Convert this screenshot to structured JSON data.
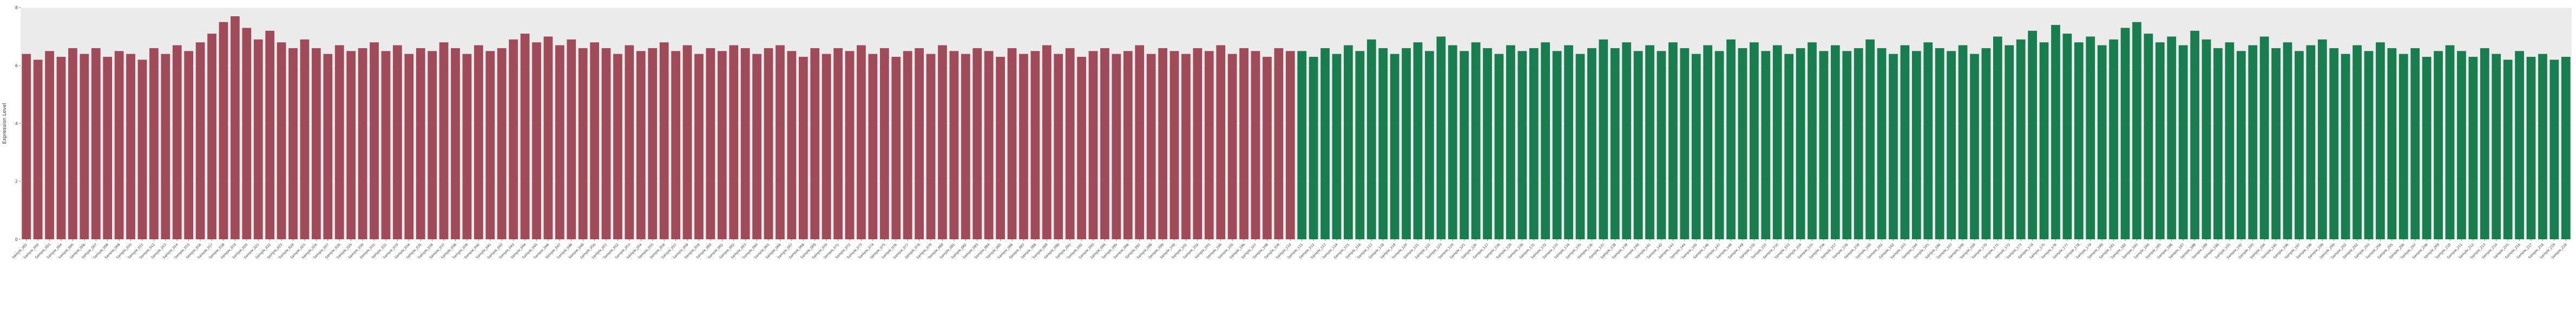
{
  "chart_data": {
    "type": "bar",
    "title": "",
    "xlabel": "",
    "ylabel": "Expression Level",
    "ylim": [
      0,
      8
    ],
    "yticks": [
      0,
      2,
      4,
      6,
      8
    ],
    "grid": true,
    "legend": "none",
    "plot_background": "#ebebeb",
    "grid_color": "#ffffff",
    "tick_color": "#555555",
    "group_split_index": 110,
    "group_colors": [
      "#a04a5a",
      "#1a7d4f"
    ],
    "categories": [
      "Sample_001",
      "Sample_002",
      "Sample_003",
      "Sample_004",
      "Sample_005",
      "Sample_006",
      "Sample_007",
      "Sample_008",
      "Sample_009",
      "Sample_010",
      "Sample_011",
      "Sample_012",
      "Sample_013",
      "Sample_014",
      "Sample_015",
      "Sample_016",
      "Sample_017",
      "Sample_018",
      "Sample_019",
      "Sample_020",
      "Sample_021",
      "Sample_022",
      "Sample_023",
      "Sample_024",
      "Sample_025",
      "Sample_026",
      "Sample_027",
      "Sample_028",
      "Sample_029",
      "Sample_030",
      "Sample_031",
      "Sample_032",
      "Sample_033",
      "Sample_034",
      "Sample_035",
      "Sample_036",
      "Sample_037",
      "Sample_038",
      "Sample_039",
      "Sample_040",
      "Sample_041",
      "Sample_042",
      "Sample_043",
      "Sample_044",
      "Sample_045",
      "Sample_046",
      "Sample_047",
      "Sample_048",
      "Sample_049",
      "Sample_050",
      "Sample_051",
      "Sample_052",
      "Sample_053",
      "Sample_054",
      "Sample_055",
      "Sample_056",
      "Sample_057",
      "Sample_058",
      "Sample_059",
      "Sample_060",
      "Sample_061",
      "Sample_062",
      "Sample_063",
      "Sample_064",
      "Sample_065",
      "Sample_066",
      "Sample_067",
      "Sample_068",
      "Sample_069",
      "Sample_070",
      "Sample_071",
      "Sample_072",
      "Sample_073",
      "Sample_074",
      "Sample_075",
      "Sample_076",
      "Sample_077",
      "Sample_078",
      "Sample_079",
      "Sample_080",
      "Sample_081",
      "Sample_082",
      "Sample_083",
      "Sample_084",
      "Sample_085",
      "Sample_086",
      "Sample_087",
      "Sample_088",
      "Sample_089",
      "Sample_090",
      "Sample_091",
      "Sample_092",
      "Sample_093",
      "Sample_094",
      "Sample_095",
      "Sample_096",
      "Sample_097",
      "Sample_098",
      "Sample_099",
      "Sample_100",
      "Sample_101",
      "Sample_102",
      "Sample_103",
      "Sample_104",
      "Sample_105",
      "Sample_106",
      "Sample_107",
      "Sample_108",
      "Sample_109",
      "Sample_110",
      "Sample_111",
      "Sample_112",
      "Sample_113",
      "Sample_114",
      "Sample_115",
      "Sample_116",
      "Sample_117",
      "Sample_118",
      "Sample_119",
      "Sample_120",
      "Sample_121",
      "Sample_122",
      "Sample_123",
      "Sample_124",
      "Sample_125",
      "Sample_126",
      "Sample_127",
      "Sample_128",
      "Sample_129",
      "Sample_130",
      "Sample_131",
      "Sample_132",
      "Sample_133",
      "Sample_134",
      "Sample_135",
      "Sample_136",
      "Sample_137",
      "Sample_138",
      "Sample_139",
      "Sample_140",
      "Sample_141",
      "Sample_142",
      "Sample_143",
      "Sample_144",
      "Sample_145",
      "Sample_146",
      "Sample_147",
      "Sample_148",
      "Sample_149",
      "Sample_150",
      "Sample_151",
      "Sample_152",
      "Sample_153",
      "Sample_154",
      "Sample_155",
      "Sample_156",
      "Sample_157",
      "Sample_158",
      "Sample_159",
      "Sample_160",
      "Sample_161",
      "Sample_162",
      "Sample_163",
      "Sample_164",
      "Sample_165",
      "Sample_166",
      "Sample_167",
      "Sample_168",
      "Sample_169",
      "Sample_170",
      "Sample_171",
      "Sample_172",
      "Sample_173",
      "Sample_174",
      "Sample_175",
      "Sample_176",
      "Sample_177",
      "Sample_178",
      "Sample_179",
      "Sample_180",
      "Sample_181",
      "Sample_182",
      "Sample_183",
      "Sample_184",
      "Sample_185",
      "Sample_186",
      "Sample_187",
      "Sample_188",
      "Sample_189",
      "Sample_190",
      "Sample_191",
      "Sample_192",
      "Sample_193",
      "Sample_194",
      "Sample_195",
      "Sample_196",
      "Sample_197",
      "Sample_198",
      "Sample_199",
      "Sample_200",
      "Sample_201",
      "Sample_202",
      "Sample_203",
      "Sample_204",
      "Sample_205",
      "Sample_206",
      "Sample_207",
      "Sample_208",
      "Sample_209",
      "Sample_210",
      "Sample_211",
      "Sample_212",
      "Sample_213",
      "Sample_214",
      "Sample_215",
      "Sample_216",
      "Sample_217",
      "Sample_218",
      "Sample_219",
      "Sample_220"
    ],
    "values": [
      6.4,
      6.2,
      6.5,
      6.3,
      6.6,
      6.4,
      6.6,
      6.3,
      6.5,
      6.4,
      6.2,
      6.6,
      6.4,
      6.7,
      6.5,
      6.8,
      7.1,
      7.5,
      7.7,
      7.3,
      6.9,
      7.2,
      6.8,
      6.6,
      6.9,
      6.6,
      6.4,
      6.7,
      6.5,
      6.6,
      6.8,
      6.5,
      6.7,
      6.4,
      6.6,
      6.5,
      6.8,
      6.6,
      6.4,
      6.7,
      6.5,
      6.6,
      6.9,
      7.1,
      6.8,
      7.0,
      6.7,
      6.9,
      6.6,
      6.8,
      6.6,
      6.4,
      6.7,
      6.5,
      6.6,
      6.8,
      6.5,
      6.7,
      6.4,
      6.6,
      6.5,
      6.7,
      6.6,
      6.4,
      6.6,
      6.7,
      6.5,
      6.3,
      6.6,
      6.4,
      6.6,
      6.5,
      6.7,
      6.4,
      6.6,
      6.3,
      6.5,
      6.6,
      6.4,
      6.7,
      6.5,
      6.4,
      6.6,
      6.5,
      6.3,
      6.6,
      6.4,
      6.5,
      6.7,
      6.4,
      6.6,
      6.3,
      6.5,
      6.6,
      6.4,
      6.5,
      6.7,
      6.4,
      6.6,
      6.5,
      6.4,
      6.6,
      6.5,
      6.7,
      6.4,
      6.6,
      6.5,
      6.3,
      6.6,
      6.5,
      6.5,
      6.3,
      6.6,
      6.4,
      6.7,
      6.5,
      6.9,
      6.6,
      6.4,
      6.6,
      6.8,
      6.5,
      7.0,
      6.7,
      6.5,
      6.8,
      6.6,
      6.4,
      6.7,
      6.5,
      6.6,
      6.8,
      6.5,
      6.7,
      6.4,
      6.6,
      6.9,
      6.6,
      6.8,
      6.5,
      6.7,
      6.5,
      6.8,
      6.6,
      6.4,
      6.7,
      6.5,
      6.9,
      6.6,
      6.8,
      6.5,
      6.7,
      6.4,
      6.6,
      6.8,
      6.5,
      6.7,
      6.5,
      6.6,
      6.9,
      6.6,
      6.4,
      6.7,
      6.5,
      6.8,
      6.6,
      6.5,
      6.7,
      6.4,
      6.6,
      7.0,
      6.7,
      6.9,
      7.2,
      6.8,
      7.4,
      7.1,
      6.8,
      7.0,
      6.7,
      6.9,
      7.3,
      7.5,
      7.1,
      6.8,
      7.0,
      6.7,
      7.2,
      6.9,
      6.6,
      6.8,
      6.5,
      6.7,
      7.0,
      6.6,
      6.8,
      6.5,
      6.7,
      6.9,
      6.6,
      6.4,
      6.7,
      6.5,
      6.8,
      6.6,
      6.4,
      6.6,
      6.3,
      6.5,
      6.7,
      6.5,
      6.3,
      6.6,
      6.4,
      6.2,
      6.5,
      6.3,
      6.4,
      6.2,
      6.3
    ]
  }
}
